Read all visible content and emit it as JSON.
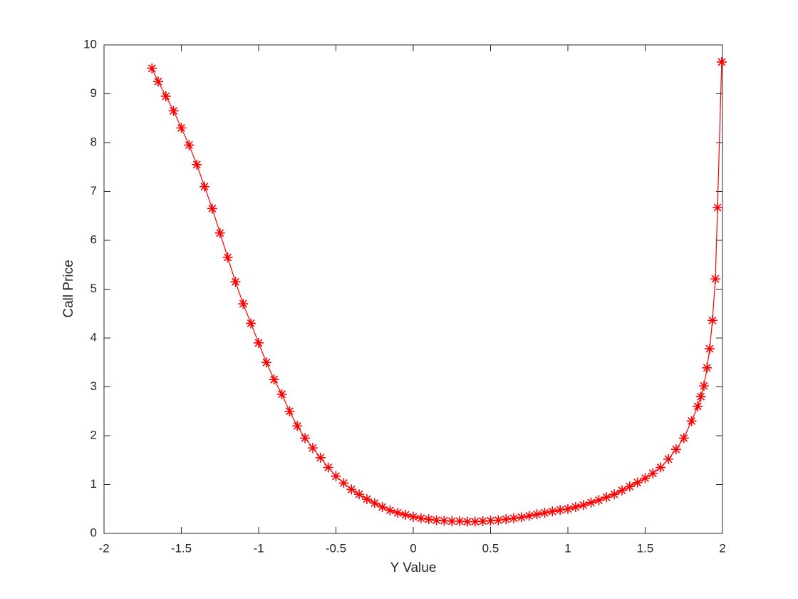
{
  "chart_data": {
    "type": "line",
    "xlabel": "Y Value",
    "ylabel": "Call Price",
    "x": [
      -1.69,
      -1.65,
      -1.6,
      -1.55,
      -1.5,
      -1.45,
      -1.4,
      -1.35,
      -1.3,
      -1.25,
      -1.2,
      -1.15,
      -1.1,
      -1.05,
      -1.0,
      -0.95,
      -0.9,
      -0.85,
      -0.8,
      -0.75,
      -0.7,
      -0.65,
      -0.6,
      -0.55,
      -0.5,
      -0.45,
      -0.4,
      -0.35,
      -0.3,
      -0.25,
      -0.2,
      -0.15,
      -0.1,
      -0.05,
      0,
      0.05,
      0.1,
      0.15,
      0.2,
      0.25,
      0.3,
      0.35,
      0.4,
      0.45,
      0.5,
      0.55,
      0.6,
      0.65,
      0.7,
      0.75,
      0.8,
      0.85,
      0.9,
      0.95,
      1.0,
      1.05,
      1.1,
      1.15,
      1.2,
      1.25,
      1.3,
      1.35,
      1.4,
      1.45,
      1.5,
      1.55,
      1.6,
      1.65,
      1.7,
      1.75,
      1.8,
      1.84,
      1.86,
      1.88,
      1.9,
      1.917,
      1.935,
      1.954,
      1.968,
      1.995
    ],
    "series": [
      {
        "color": "#ff0000",
        "marker": "asterisk",
        "values": [
          9.52,
          9.25,
          8.95,
          8.65,
          8.3,
          7.95,
          7.55,
          7.1,
          6.65,
          6.15,
          5.65,
          5.15,
          4.7,
          4.3,
          3.9,
          3.5,
          3.15,
          2.85,
          2.5,
          2.2,
          1.95,
          1.75,
          1.55,
          1.35,
          1.17,
          1.03,
          0.9,
          0.8,
          0.7,
          0.62,
          0.54,
          0.47,
          0.42,
          0.38,
          0.34,
          0.31,
          0.29,
          0.27,
          0.26,
          0.25,
          0.25,
          0.24,
          0.24,
          0.25,
          0.26,
          0.27,
          0.29,
          0.31,
          0.33,
          0.36,
          0.39,
          0.42,
          0.45,
          0.48,
          0.5,
          0.54,
          0.58,
          0.63,
          0.68,
          0.74,
          0.8,
          0.88,
          0.96,
          1.04,
          1.13,
          1.23,
          1.35,
          1.52,
          1.72,
          1.95,
          2.3,
          2.6,
          2.8,
          3.02,
          3.39,
          3.78,
          4.36,
          5.21,
          6.67,
          9.65
        ]
      }
    ],
    "xlim": [
      -2,
      2
    ],
    "xticks": [
      -2,
      -1.5,
      -1,
      -0.5,
      0,
      0.5,
      1,
      1.5,
      2
    ],
    "ylim": [
      0,
      10
    ],
    "yticks": [
      0,
      1,
      2,
      3,
      4,
      5,
      6,
      7,
      8,
      9,
      10
    ],
    "grid": false
  }
}
